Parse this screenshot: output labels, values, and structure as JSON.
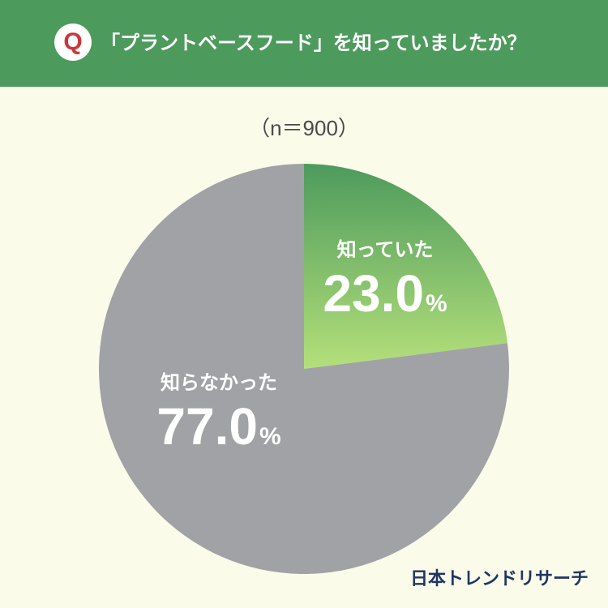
{
  "header": {
    "badge": "Q",
    "question": "「プラントベースフード」を知っていましたか？"
  },
  "sample_size": "（n＝900）",
  "brand": "日本トレンドリサーチ",
  "colors": {
    "header_bg": "#4d9a5d",
    "background": "#fbfbea",
    "known_gradient_start": "#4d9a5d",
    "known_gradient_end": "#b4e07a",
    "unknown": "#a1a2a6",
    "badge_text": "#c9393b",
    "brand": "#1f3563"
  },
  "chart_data": {
    "type": "pie",
    "title": "「プラントベースフード」を知っていましたか？",
    "subtitle": "（n＝900）",
    "slices": [
      {
        "label": "知っていた",
        "value": 23.0,
        "display": "23.0",
        "unit": "%"
      },
      {
        "label": "知らなかった",
        "value": 77.0,
        "display": "77.0",
        "unit": "%"
      }
    ],
    "start_angle": "12 o'clock",
    "direction": "clockwise"
  }
}
